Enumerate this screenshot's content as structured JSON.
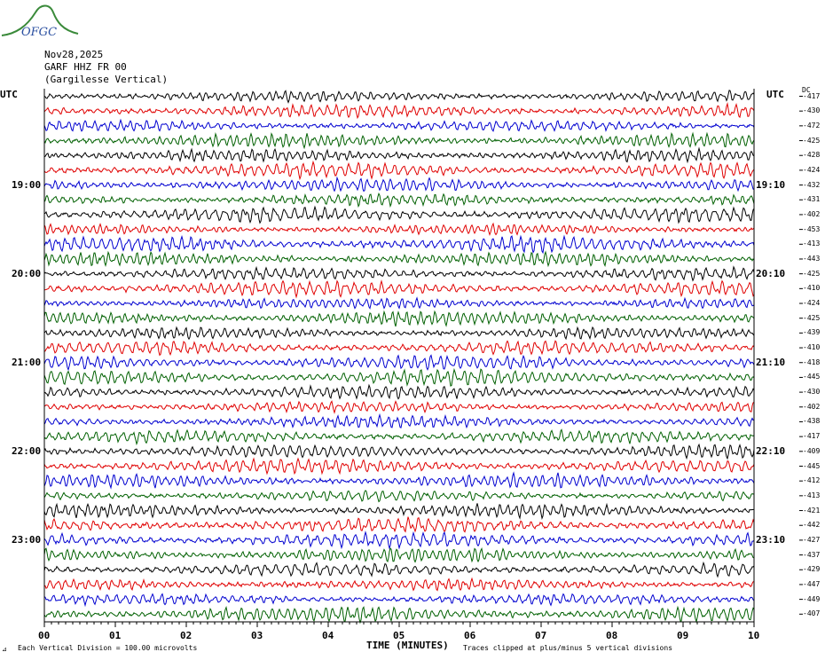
{
  "header": {
    "logo_text": "OFGC",
    "date": "Nov28,2025",
    "station": "GARF HHZ FR 00",
    "location": "(Gargilesse Vertical)"
  },
  "axis": {
    "utc_left": "UTC",
    "utc_right": "UTC",
    "dc_label": "DC",
    "x_title": "TIME (MINUTES)"
  },
  "footer": {
    "scale_note": "Each Vertical Division = 100.00 microvolts",
    "clip_note": "Traces clipped at plus/minus 5 vertical divisions",
    "corner_mark": "⊿"
  },
  "colors": {
    "trace_cycle": [
      "#000000",
      "#e00000",
      "#0000d0",
      "#006000"
    ],
    "logo_green": "#3a8a3a",
    "logo_blue": "#2a4fa0"
  },
  "chart_data": {
    "type": "line",
    "title": "Nov28,2025 GARF HHZ FR 00 (Gargilesse Vertical)",
    "xlabel": "TIME (MINUTES)",
    "xlim": [
      0,
      10
    ],
    "x_ticks": [
      "00",
      "01",
      "02",
      "03",
      "04",
      "05",
      "06",
      "07",
      "08",
      "09",
      "10"
    ],
    "row_minutes": 10,
    "left_time_labels": [
      {
        "row": 6,
        "label": "19:00"
      },
      {
        "row": 12,
        "label": "20:00"
      },
      {
        "row": 18,
        "label": "21:00"
      },
      {
        "row": 24,
        "label": "22:00"
      },
      {
        "row": 30,
        "label": "23:00"
      }
    ],
    "right_time_labels": [
      {
        "row": 6,
        "label": "19:10"
      },
      {
        "row": 12,
        "label": "20:10"
      },
      {
        "row": 18,
        "label": "21:10"
      },
      {
        "row": 24,
        "label": "22:10"
      },
      {
        "row": 30,
        "label": "23:10"
      }
    ],
    "dc_offsets": [
      -417,
      -430,
      -472,
      -425,
      -428,
      -424,
      -432,
      -431,
      -402,
      -453,
      -413,
      -443,
      -425,
      -410,
      -424,
      -425,
      -439,
      -410,
      -418,
      -445,
      -430,
      -402,
      -438,
      -417,
      -409,
      -445,
      -412,
      -413,
      -421,
      -442,
      -427,
      -437,
      -429,
      -447,
      -449,
      -407
    ],
    "clip_divisions": 5,
    "vertical_division_microvolts": 100.0
  }
}
